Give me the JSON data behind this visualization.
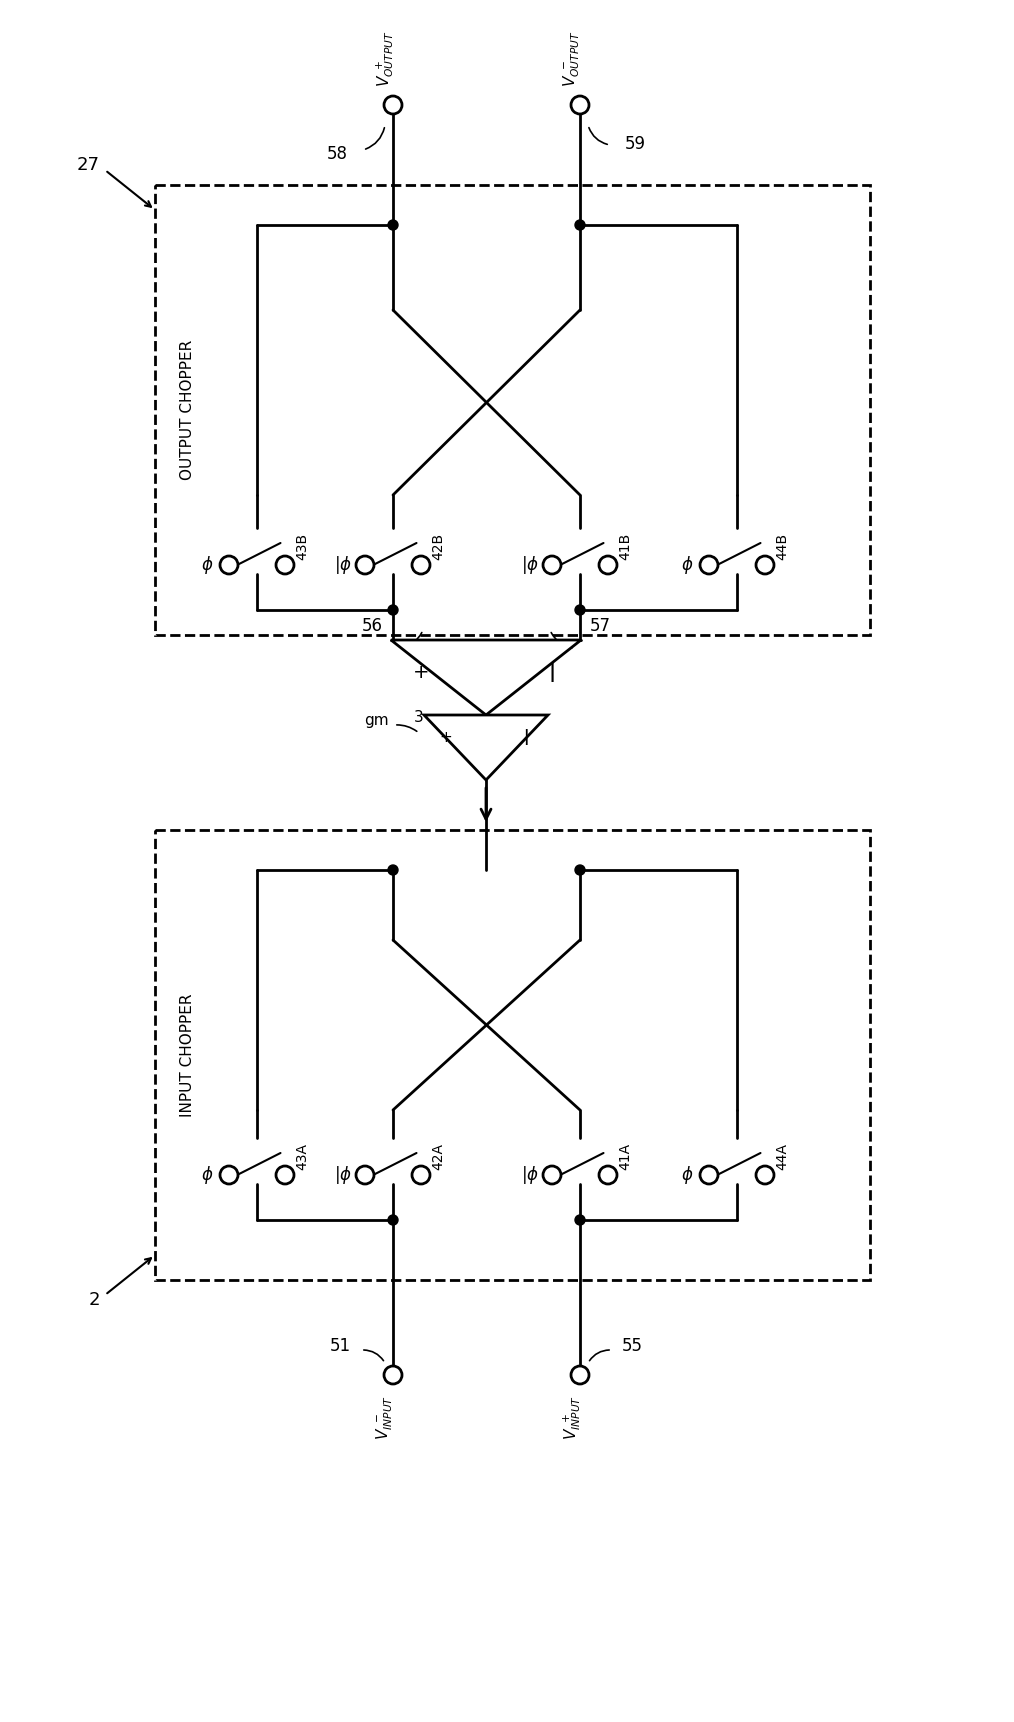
{
  "figsize": [
    10.14,
    17.22
  ],
  "dpi": 100,
  "output_chopper_label": "OUTPUT CHOPPER",
  "input_chopper_label": "INPUT CHOPPER",
  "switch_B": [
    "43B",
    "42B",
    "41B",
    "44B"
  ],
  "switch_A": [
    "43A",
    "42A",
    "41A",
    "44A"
  ],
  "phi_B": [
    false,
    true,
    true,
    false
  ],
  "phi_A": [
    false,
    true,
    true,
    false
  ],
  "node_labels_B": {
    "58": "left",
    "59": "right"
  },
  "node_labels_amp": {
    "56": "left",
    "57": "right"
  },
  "node_labels_in": {
    "51": "left",
    "55": "right"
  },
  "gm_label": "gm",
  "gm_num": "3",
  "lw": 2.0
}
